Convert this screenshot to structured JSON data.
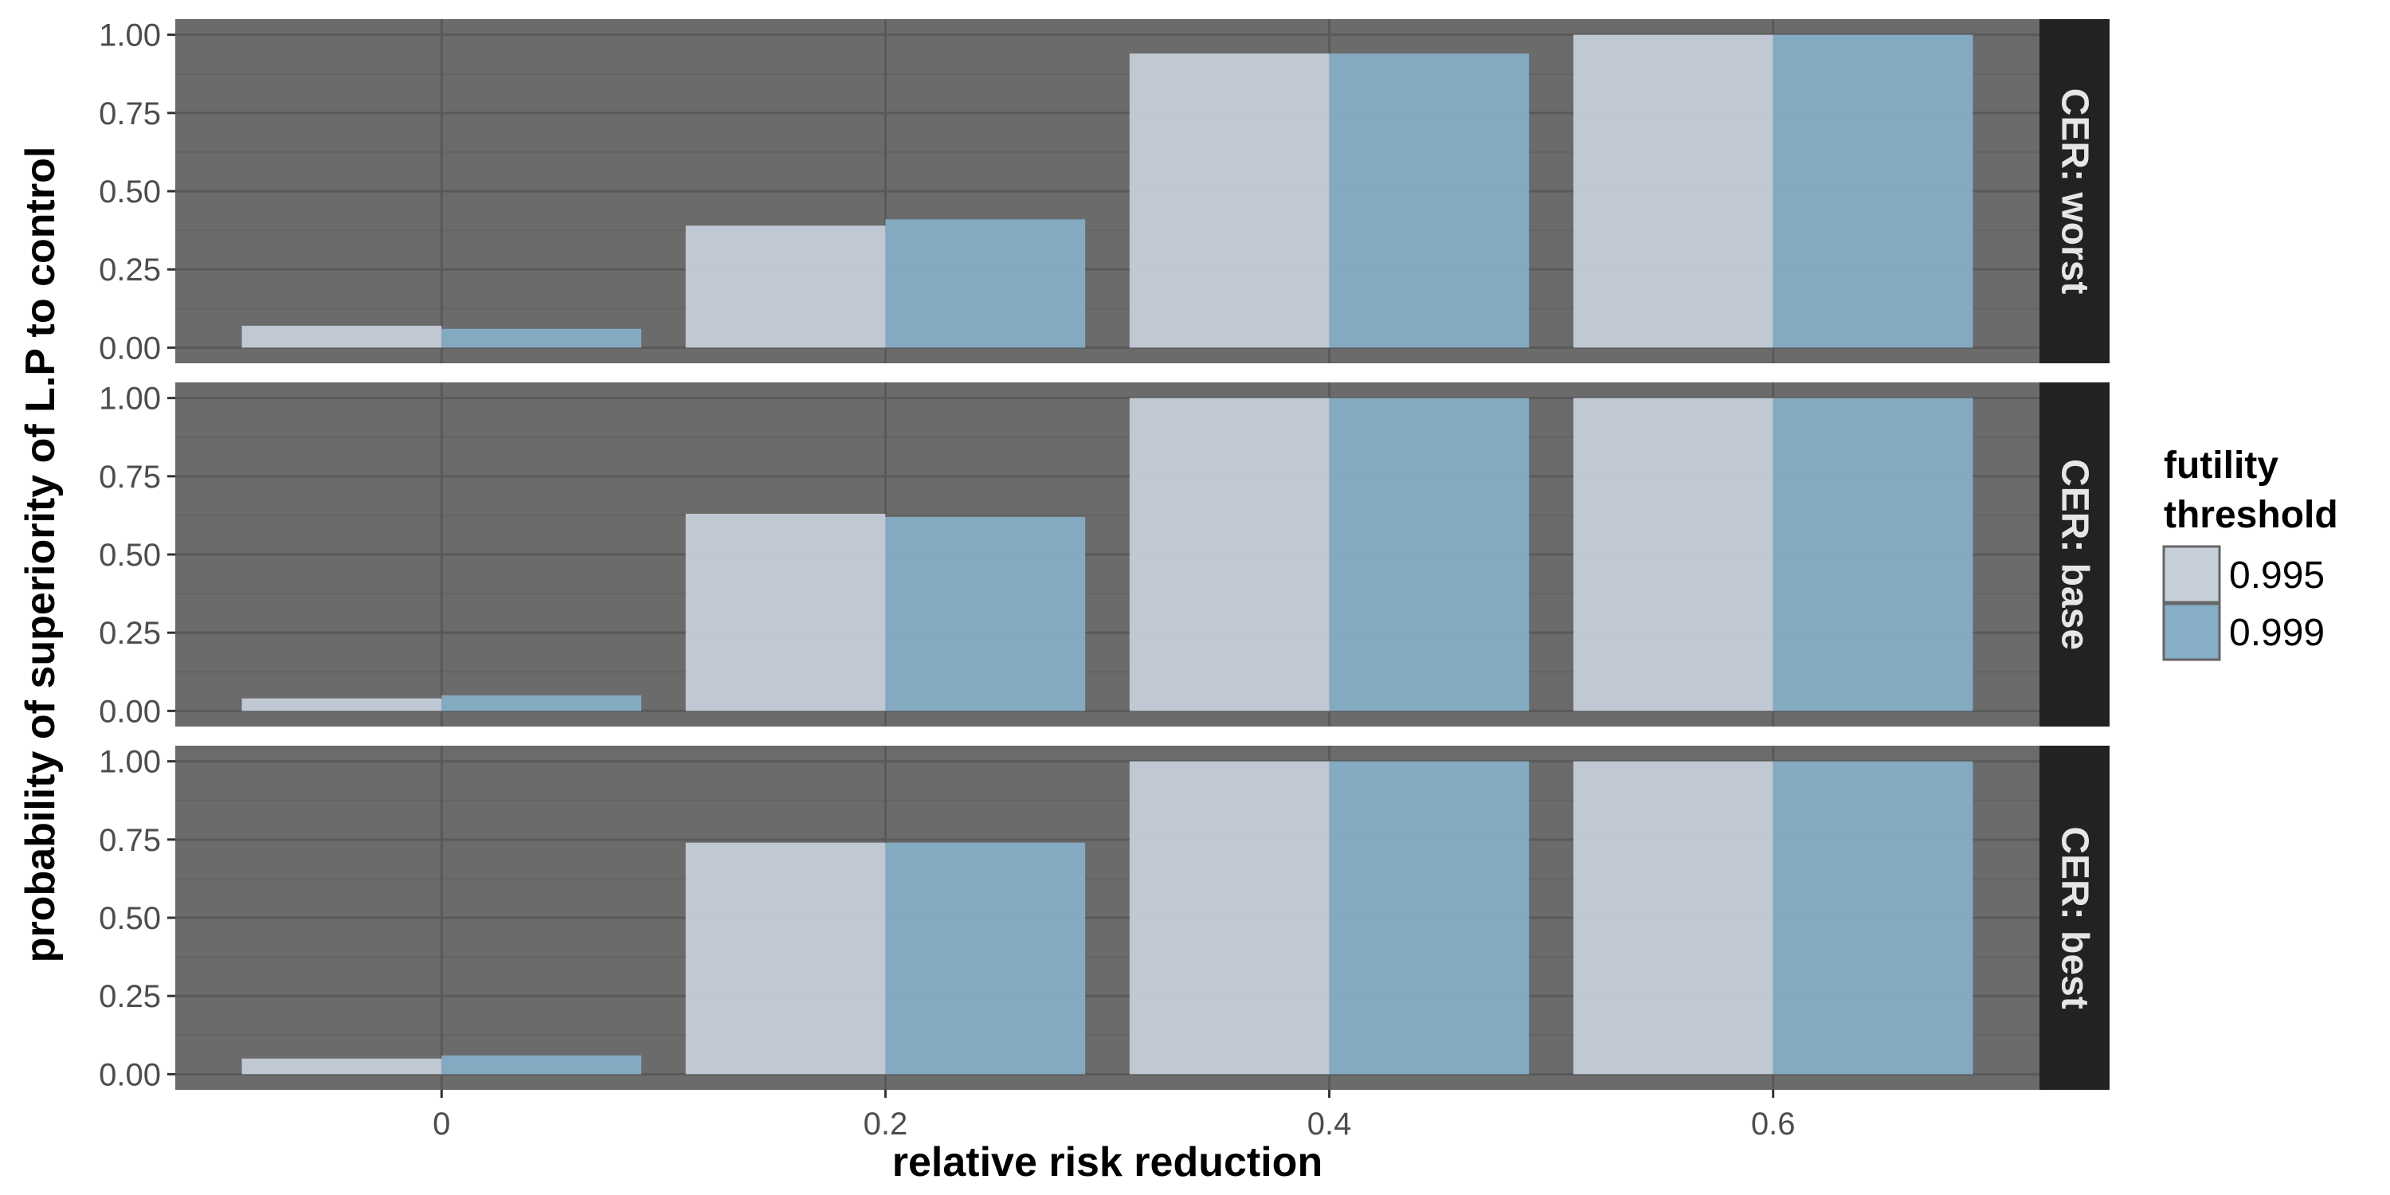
{
  "chart_data": {
    "type": "bar",
    "title": "",
    "xlabel": "relative risk reduction",
    "ylabel": "probability of superiority of L.P to control",
    "x": [
      0,
      0.2,
      0.4,
      0.6
    ],
    "x_tick_labels": [
      "0",
      "0.2",
      "0.4",
      "0.6"
    ],
    "y_tick_labels": [
      "0.00",
      "0.25",
      "0.50",
      "0.75",
      "1.00"
    ],
    "ylim": [
      0,
      1
    ],
    "xlim": [
      -0.12,
      0.72
    ],
    "grid": true,
    "legend": {
      "title_lines": [
        "futility",
        "threshold"
      ],
      "placement": "right",
      "entries": [
        {
          "label": "0.995",
          "color": "#c5ced9"
        },
        {
          "label": "0.999",
          "color": "#86aec6"
        }
      ]
    },
    "panels": [
      {
        "label": "CER: worst",
        "series": [
          {
            "name": "0.995",
            "values": [
              0.07,
              0.39,
              0.94,
              1.0
            ]
          },
          {
            "name": "0.999",
            "values": [
              0.06,
              0.41,
              0.94,
              1.0
            ]
          }
        ]
      },
      {
        "label": "CER: base",
        "series": [
          {
            "name": "0.995",
            "values": [
              0.04,
              0.63,
              1.0,
              1.0
            ]
          },
          {
            "name": "0.999",
            "values": [
              0.05,
              0.62,
              1.0,
              1.0
            ]
          }
        ]
      },
      {
        "label": "CER: best",
        "series": [
          {
            "name": "0.995",
            "values": [
              0.05,
              0.74,
              1.0,
              1.0
            ]
          },
          {
            "name": "0.999",
            "values": [
              0.06,
              0.74,
              1.0,
              1.0
            ]
          }
        ]
      }
    ],
    "colors": {
      "panel_background": "#6b6b6b",
      "grid_major": "#595959",
      "grid_minor": "#636363",
      "strip_background": "#222222",
      "strip_text": "#e6e6e6",
      "bar_outline": "#666666"
    }
  }
}
